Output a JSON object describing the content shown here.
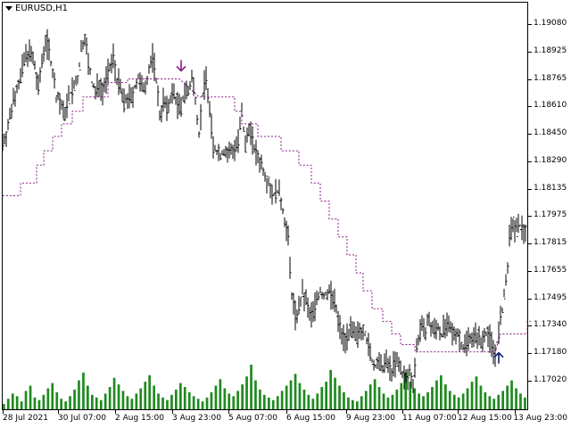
{
  "symbol": "EURUSD,H1",
  "colors": {
    "candle": "#000000",
    "volume": "#1f8a1f",
    "trailing_stop": "#8b1a8b",
    "down_arrow": "#8b1a8b",
    "up_arrow": "#0b1a7a"
  },
  "icons": {
    "symbol_menu": "triangle-down-icon",
    "sell_signal": "arrow-down-icon",
    "buy_signal": "arrow-up-icon"
  },
  "price_axis": [
    "1.19080",
    "1.18925",
    "1.18765",
    "1.18610",
    "1.18450",
    "1.18290",
    "1.18135",
    "1.17975",
    "1.17815",
    "1.17655",
    "1.17495",
    "1.17340",
    "1.17180",
    "1.17020"
  ],
  "time_axis": [
    "28 Jul 2021",
    "30 Jul 07:00",
    "2 Aug 15:00",
    "3 Aug 23:00",
    "5 Aug 07:00",
    "6 Aug 15:00",
    "9 Aug 23:00",
    "11 Aug 07:00",
    "12 Aug 15:00",
    "13 Aug 23:00"
  ],
  "chart_data": {
    "type": "line",
    "symbol": "EURUSD",
    "timeframe": "H1",
    "ylim": [
      1.1698,
      1.192
    ],
    "price_path": [
      [
        0,
        1.1845
      ],
      [
        4,
        1.185
      ],
      [
        8,
        1.1858
      ],
      [
        12,
        1.187
      ],
      [
        16,
        1.1876
      ],
      [
        20,
        1.188
      ],
      [
        24,
        1.189
      ],
      [
        28,
        1.1895
      ],
      [
        32,
        1.1893
      ],
      [
        36,
        1.1886
      ],
      [
        40,
        1.1874
      ],
      [
        44,
        1.189
      ],
      [
        48,
        1.1902
      ],
      [
        52,
        1.1896
      ],
      [
        56,
        1.1884
      ],
      [
        60,
        1.187
      ],
      [
        64,
        1.1868
      ],
      [
        68,
        1.186
      ],
      [
        72,
        1.1866
      ],
      [
        76,
        1.1872
      ],
      [
        80,
        1.1875
      ],
      [
        84,
        1.188
      ],
      [
        88,
        1.1896
      ],
      [
        92,
        1.1905
      ],
      [
        96,
        1.1888
      ],
      [
        100,
        1.1878
      ],
      [
        104,
        1.1872
      ],
      [
        108,
        1.1878
      ],
      [
        112,
        1.1874
      ],
      [
        116,
        1.188
      ],
      [
        120,
        1.1885
      ],
      [
        124,
        1.1893
      ],
      [
        128,
        1.188
      ],
      [
        132,
        1.1874
      ],
      [
        136,
        1.1866
      ],
      [
        140,
        1.187
      ],
      [
        144,
        1.1868
      ],
      [
        148,
        1.1876
      ],
      [
        152,
        1.188
      ],
      [
        156,
        1.1874
      ],
      [
        160,
        1.1878
      ],
      [
        164,
        1.1885
      ],
      [
        168,
        1.1892
      ],
      [
        172,
        1.188
      ],
      [
        176,
        1.186
      ],
      [
        180,
        1.1868
      ],
      [
        184,
        1.1862
      ],
      [
        188,
        1.187
      ],
      [
        192,
        1.1872
      ],
      [
        196,
        1.1866
      ],
      [
        200,
        1.1862
      ],
      [
        204,
        1.1875
      ],
      [
        208,
        1.1872
      ],
      [
        212,
        1.188
      ],
      [
        216,
        1.187
      ],
      [
        220,
        1.185
      ],
      [
        224,
        1.187
      ],
      [
        228,
        1.1882
      ],
      [
        232,
        1.1862
      ],
      [
        236,
        1.1842
      ],
      [
        240,
        1.184
      ],
      [
        244,
        1.1838
      ],
      [
        248,
        1.184
      ],
      [
        252,
        1.1838
      ],
      [
        256,
        1.184
      ],
      [
        260,
        1.1842
      ],
      [
        264,
        1.1845
      ],
      [
        268,
        1.186
      ],
      [
        272,
        1.1842
      ],
      [
        276,
        1.1855
      ],
      [
        280,
        1.1845
      ],
      [
        284,
        1.1838
      ],
      [
        288,
        1.1835
      ],
      [
        292,
        1.183
      ],
      [
        296,
        1.1825
      ],
      [
        300,
        1.182
      ],
      [
        304,
        1.1815
      ],
      [
        308,
        1.1818
      ],
      [
        312,
        1.1812
      ],
      [
        316,
        1.1802
      ],
      [
        320,
        1.179
      ],
      [
        324,
        1.176
      ],
      [
        328,
        1.1748
      ],
      [
        332,
        1.1752
      ],
      [
        336,
        1.176
      ],
      [
        340,
        1.1756
      ],
      [
        344,
        1.1748
      ],
      [
        348,
        1.175
      ],
      [
        352,
        1.1758
      ],
      [
        356,
        1.1762
      ],
      [
        360,
        1.1758
      ],
      [
        364,
        1.1762
      ],
      [
        368,
        1.176
      ],
      [
        372,
        1.1755
      ],
      [
        376,
        1.1745
      ],
      [
        380,
        1.1738
      ],
      [
        384,
        1.1735
      ],
      [
        388,
        1.174
      ],
      [
        392,
        1.1738
      ],
      [
        396,
        1.1735
      ],
      [
        400,
        1.174
      ],
      [
        404,
        1.1742
      ],
      [
        408,
        1.1735
      ],
      [
        412,
        1.1726
      ],
      [
        416,
        1.172
      ],
      [
        420,
        1.1722
      ],
      [
        424,
        1.1718
      ],
      [
        428,
        1.1722
      ],
      [
        432,
        1.172
      ],
      [
        436,
        1.1718
      ],
      [
        440,
        1.1722
      ],
      [
        444,
        1.172
      ],
      [
        448,
        1.1716
      ],
      [
        452,
        1.1712
      ],
      [
        456,
        1.1716
      ],
      [
        460,
        1.1712
      ],
      [
        464,
        1.173
      ],
      [
        468,
        1.1742
      ],
      [
        472,
        1.1738
      ],
      [
        476,
        1.1745
      ],
      [
        480,
        1.1742
      ],
      [
        484,
        1.174
      ],
      [
        488,
        1.1742
      ],
      [
        492,
        1.1738
      ],
      [
        496,
        1.1742
      ],
      [
        500,
        1.174
      ],
      [
        504,
        1.1738
      ],
      [
        508,
        1.174
      ],
      [
        512,
        1.1736
      ],
      [
        516,
        1.173
      ],
      [
        520,
        1.1734
      ],
      [
        524,
        1.1738
      ],
      [
        528,
        1.1735
      ],
      [
        532,
        1.1738
      ],
      [
        536,
        1.1732
      ],
      [
        540,
        1.174
      ],
      [
        544,
        1.1738
      ],
      [
        548,
        1.1732
      ],
      [
        552,
        1.1728
      ],
      [
        556,
        1.1738
      ],
      [
        560,
        1.1752
      ],
      [
        564,
        1.1765
      ],
      [
        568,
        1.179
      ],
      [
        572,
        1.18
      ],
      [
        576,
        1.1795
      ],
      [
        580,
        1.1798
      ],
      [
        584,
        1.1796
      ],
      [
        588,
        1.1797
      ]
    ],
    "trailing_stop": [
      [
        0,
        1.1815
      ],
      [
        20,
        1.1815
      ],
      [
        20,
        1.1822
      ],
      [
        38,
        1.1822
      ],
      [
        38,
        1.1832
      ],
      [
        46,
        1.1832
      ],
      [
        46,
        1.184
      ],
      [
        56,
        1.184
      ],
      [
        56,
        1.1848
      ],
      [
        66,
        1.1848
      ],
      [
        66,
        1.1855
      ],
      [
        78,
        1.1855
      ],
      [
        78,
        1.1862
      ],
      [
        90,
        1.1862
      ],
      [
        90,
        1.187
      ],
      [
        118,
        1.187
      ],
      [
        118,
        1.1878
      ],
      [
        140,
        1.1878
      ],
      [
        140,
        1.188
      ],
      [
        198,
        1.188
      ],
      [
        220,
        1.187
      ],
      [
        260,
        1.187
      ],
      [
        260,
        1.1862
      ],
      [
        268,
        1.1862
      ],
      [
        268,
        1.1855
      ],
      [
        286,
        1.1855
      ],
      [
        286,
        1.1848
      ],
      [
        312,
        1.1848
      ],
      [
        312,
        1.184
      ],
      [
        332,
        1.184
      ],
      [
        332,
        1.1832
      ],
      [
        346,
        1.1832
      ],
      [
        346,
        1.1822
      ],
      [
        356,
        1.1822
      ],
      [
        356,
        1.1812
      ],
      [
        366,
        1.1812
      ],
      [
        366,
        1.1802
      ],
      [
        376,
        1.1802
      ],
      [
        376,
        1.1792
      ],
      [
        386,
        1.1792
      ],
      [
        386,
        1.1782
      ],
      [
        396,
        1.1782
      ],
      [
        396,
        1.1772
      ],
      [
        404,
        1.1772
      ],
      [
        404,
        1.1762
      ],
      [
        414,
        1.1762
      ],
      [
        414,
        1.1752
      ],
      [
        426,
        1.1752
      ],
      [
        426,
        1.1745
      ],
      [
        436,
        1.1745
      ],
      [
        436,
        1.1738
      ],
      [
        446,
        1.1738
      ],
      [
        446,
        1.1732
      ],
      [
        462,
        1.1732
      ],
      [
        462,
        1.1728
      ],
      [
        552,
        1.1728
      ],
      [
        558,
        1.1738
      ],
      [
        588,
        1.1738
      ],
      [
        588,
        1.1745
      ],
      [
        592,
        1.1745
      ]
    ],
    "signals": [
      {
        "type": "sell",
        "x": 200,
        "price": 1.1887
      },
      {
        "type": "buy",
        "x": 556,
        "price": 1.1725
      }
    ],
    "volume": [
      4,
      8,
      12,
      10,
      6,
      14,
      18,
      9,
      7,
      11,
      16,
      20,
      13,
      8,
      6,
      10,
      15,
      22,
      28,
      18,
      11,
      9,
      7,
      12,
      17,
      24,
      19,
      14,
      10,
      8,
      12,
      16,
      21,
      26,
      18,
      12,
      9,
      7,
      11,
      15,
      20,
      17,
      13,
      10,
      8,
      6,
      9,
      13,
      18,
      23,
      16,
      12,
      10,
      14,
      19,
      25,
      34,
      22,
      15,
      11,
      9,
      7,
      10,
      14,
      18,
      22,
      27,
      20,
      15,
      11,
      8,
      12,
      17,
      21,
      30,
      24,
      18,
      13,
      9,
      7,
      6,
      10,
      14,
      19,
      23,
      17,
      12,
      9,
      11,
      15,
      20,
      28,
      21,
      16,
      12,
      10,
      13,
      17,
      22,
      26,
      19,
      14,
      11,
      9,
      12,
      16,
      21,
      25,
      18,
      13,
      10,
      8,
      11,
      14,
      18,
      22,
      16,
      12,
      9
    ]
  }
}
